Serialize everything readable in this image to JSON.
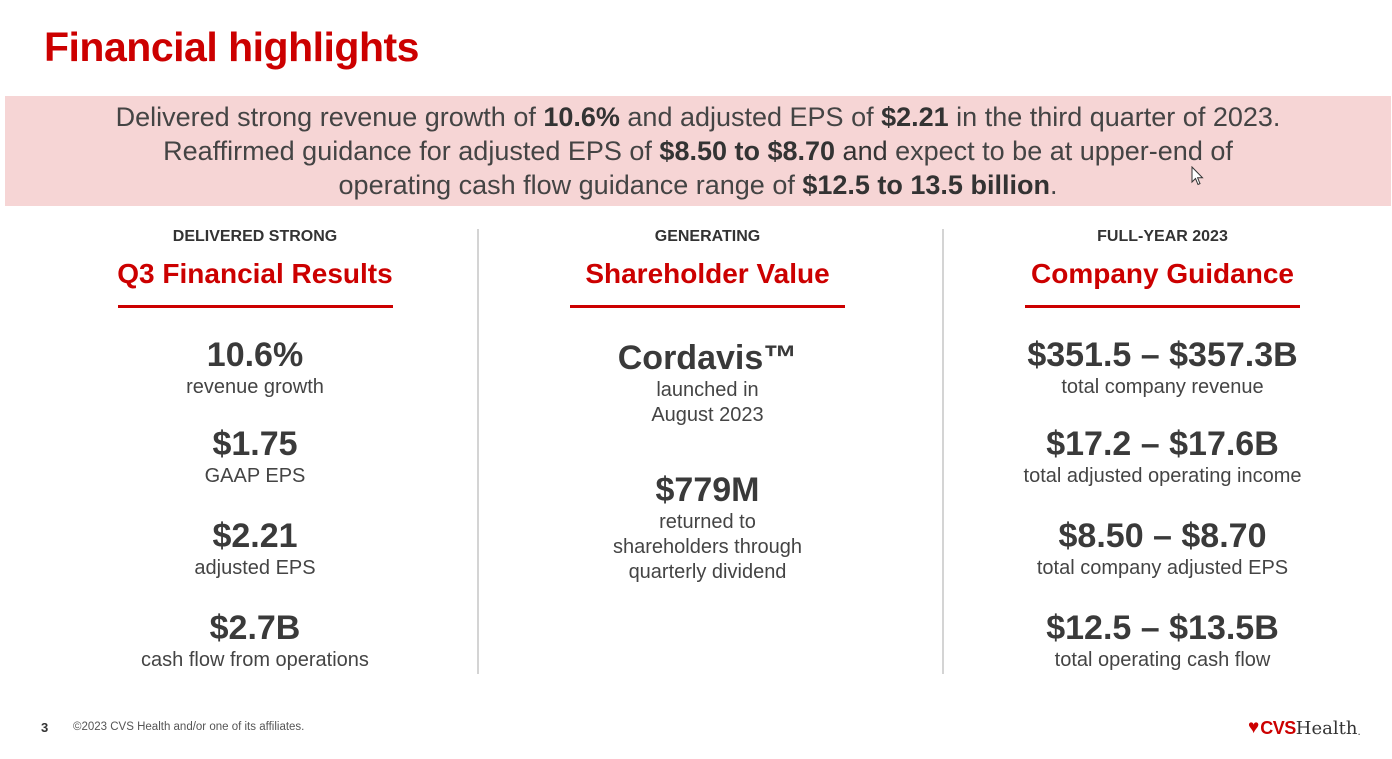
{
  "slide": {
    "title": "Financial highlights"
  },
  "banner": {
    "line1_pre": "Delivered strong revenue growth of ",
    "line1_bold1": "10.6%",
    "line1_mid": " and adjusted EPS of ",
    "line1_bold2": "$2.21",
    "line1_post": " in the third quarter of 2023.",
    "line2_pre": "Reaffirmed guidance for adjusted EPS of ",
    "line2_bold1": "$8.50 to $8.70",
    "line2_mid": " and",
    "line2_post": " expect to be at upper-end of",
    "line3_pre": "operating cash flow guidance range of  ",
    "line3_bold": "$12.5 to 13.5 billion",
    "line3_post": "."
  },
  "columns": [
    {
      "overline": "DELIVERED STRONG",
      "heading": "Q3 Financial Results",
      "metrics": [
        {
          "value": "10.6%",
          "label": "revenue growth"
        },
        {
          "value": "$1.75",
          "label": "GAAP EPS"
        },
        {
          "value": "$2.21",
          "label": "adjusted EPS"
        },
        {
          "value": "$2.7B",
          "label": "cash flow from operations"
        }
      ]
    },
    {
      "overline": "GENERATING",
      "heading": "Shareholder Value",
      "metrics": [
        {
          "value": "Cordavis™",
          "label_line1": "launched in",
          "label_line2": "August 2023"
        },
        {
          "value": "$779M",
          "label_line1": "returned to",
          "label_line2": "shareholders through",
          "label_line3": "quarterly dividend"
        }
      ]
    },
    {
      "overline": "FULL-YEAR 2023",
      "heading": "Company Guidance",
      "metrics": [
        {
          "value": "$351.5 – $357.3B",
          "label": "total company revenue"
        },
        {
          "value": "$17.2 – $17.6B",
          "label": "total adjusted operating income"
        },
        {
          "value": "$8.50 – $8.70",
          "label": "total company adjusted EPS"
        },
        {
          "value": "$12.5 – $13.5B",
          "label": "total operating cash flow"
        }
      ]
    }
  ],
  "footer": {
    "page_number": "3",
    "copyright": "©2023 CVS Health and/or one of its affiliates.",
    "logo_cvs": "CVS",
    "logo_health": "Health",
    "logo_mark": "."
  },
  "colors": {
    "brand_red": "#cc0000",
    "banner_bg": "#f6d5d5"
  }
}
